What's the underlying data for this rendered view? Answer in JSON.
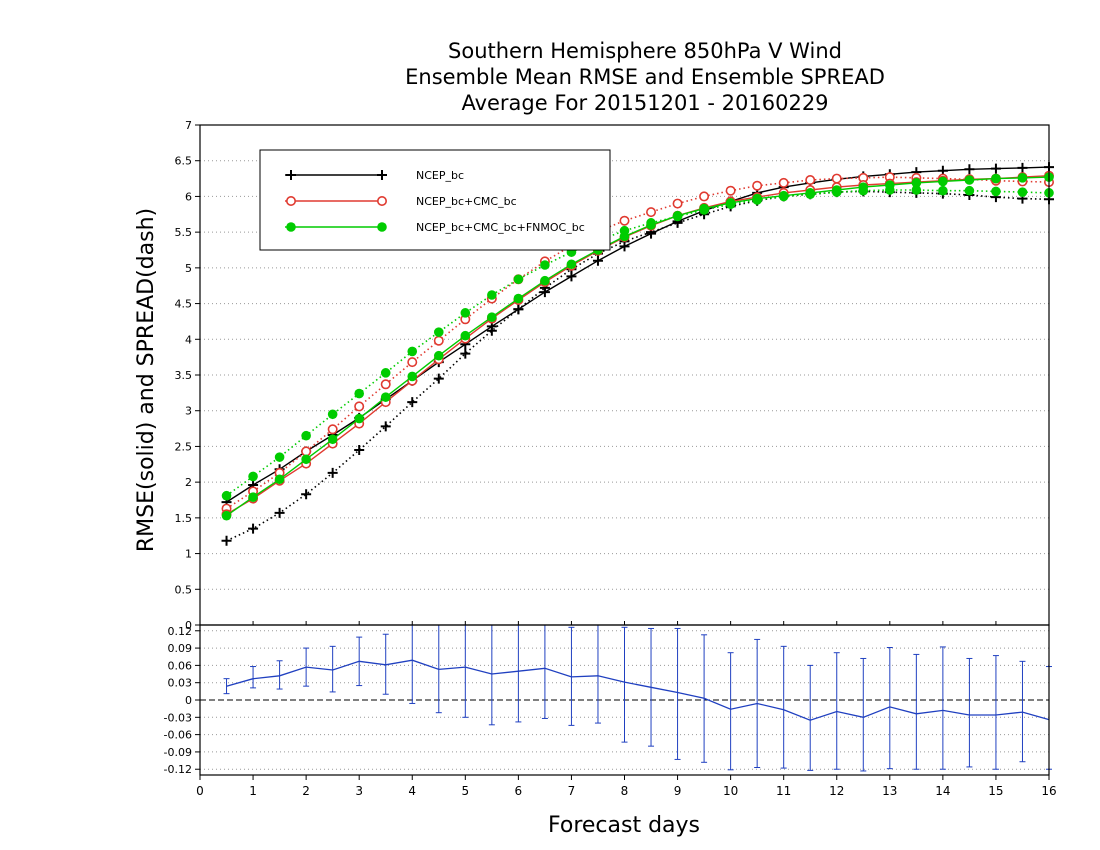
{
  "chart_data": [
    {
      "type": "line",
      "title": [
        "Southern Hemisphere 850hPa V Wind",
        "Ensemble Mean RMSE and Ensemble SPREAD",
        "Average For 20151201 - 20160229"
      ],
      "ylabel": "RMSE(solid)  and  SPREAD(dash)",
      "xlabel": "Forecast days",
      "xlim": [
        0,
        16
      ],
      "ylim": [
        0,
        7
      ],
      "yticks": [
        "0",
        "0.5",
        "1",
        "1.5",
        "2",
        "2.5",
        "3",
        "3.5",
        "4",
        "4.5",
        "5",
        "5.5",
        "6",
        "6.5",
        "7"
      ],
      "xticks": [
        "0",
        "1",
        "2",
        "3",
        "4",
        "5",
        "6",
        "7",
        "8",
        "9",
        "10",
        "11",
        "12",
        "13",
        "14",
        "15",
        "16"
      ],
      "grid": true,
      "legend_position": "top-left",
      "x": [
        0.5,
        1,
        1.5,
        2,
        2.5,
        3,
        3.5,
        4,
        4.5,
        5,
        5.5,
        6,
        6.5,
        7,
        7.5,
        8,
        8.5,
        9,
        9.5,
        10,
        10.5,
        11,
        11.5,
        12,
        12.5,
        13,
        13.5,
        14,
        14.5,
        15,
        15.5,
        16
      ],
      "series": [
        {
          "name": "NCEP_bc",
          "color": "#000000",
          "marker": "plus",
          "rmse": [
            1.72,
            1.96,
            2.18,
            2.43,
            2.66,
            2.9,
            3.16,
            3.42,
            3.68,
            3.93,
            4.18,
            4.42,
            4.66,
            4.88,
            5.1,
            5.3,
            5.48,
            5.65,
            5.8,
            5.93,
            6.05,
            6.13,
            6.19,
            6.24,
            6.28,
            6.31,
            6.34,
            6.36,
            6.38,
            6.39,
            6.4,
            6.41
          ],
          "spread": [
            1.18,
            1.35,
            1.57,
            1.83,
            2.13,
            2.45,
            2.78,
            3.12,
            3.45,
            3.8,
            4.12,
            4.42,
            4.72,
            4.98,
            5.2,
            5.37,
            5.5,
            5.63,
            5.75,
            5.86,
            5.94,
            6.0,
            6.03,
            6.06,
            6.07,
            6.06,
            6.05,
            6.04,
            6.02,
            5.99,
            5.97,
            5.96
          ]
        },
        {
          "name": "NCEP_bc+CMC_bc",
          "color": "#e03a30",
          "marker": "open-circle",
          "rmse": [
            1.55,
            1.77,
            2.02,
            2.26,
            2.54,
            2.82,
            3.12,
            3.42,
            3.72,
            4.01,
            4.29,
            4.55,
            4.8,
            5.03,
            5.24,
            5.43,
            5.59,
            5.73,
            5.84,
            5.93,
            5.99,
            6.05,
            6.09,
            6.13,
            6.16,
            6.18,
            6.2,
            6.22,
            6.24,
            6.25,
            6.27,
            6.29
          ],
          "spread": [
            1.63,
            1.87,
            2.13,
            2.43,
            2.74,
            3.06,
            3.37,
            3.68,
            3.98,
            4.28,
            4.57,
            4.84,
            5.09,
            5.31,
            5.51,
            5.66,
            5.78,
            5.9,
            6.0,
            6.08,
            6.15,
            6.19,
            6.23,
            6.25,
            6.26,
            6.27,
            6.26,
            6.25,
            6.24,
            6.22,
            6.21,
            6.2
          ]
        },
        {
          "name": "NCEP_bc+CMC_bc+FNMOC_bc",
          "color": "#00cc00",
          "marker": "filled-circle",
          "rmse": [
            1.53,
            1.79,
            2.04,
            2.32,
            2.6,
            2.89,
            3.19,
            3.48,
            3.77,
            4.05,
            4.31,
            4.57,
            4.82,
            5.05,
            5.25,
            5.44,
            5.6,
            5.73,
            5.83,
            5.91,
            5.97,
            6.01,
            6.05,
            6.09,
            6.13,
            6.16,
            6.19,
            6.21,
            6.23,
            6.25,
            6.26,
            6.27
          ],
          "spread": [
            1.81,
            2.08,
            2.35,
            2.65,
            2.95,
            3.24,
            3.53,
            3.83,
            4.1,
            4.37,
            4.62,
            4.84,
            5.04,
            5.22,
            5.38,
            5.52,
            5.63,
            5.72,
            5.81,
            5.89,
            5.95,
            6.0,
            6.03,
            6.06,
            6.08,
            6.09,
            6.09,
            6.08,
            6.08,
            6.07,
            6.06,
            6.05
          ]
        }
      ]
    },
    {
      "type": "line",
      "title": "",
      "xlabel": "Forecast days",
      "ylim": [
        -0.13,
        0.13
      ],
      "yticks": [
        "0.12",
        "0.09",
        "0.06",
        "0.03",
        "0",
        "-0.03",
        "-0.06",
        "-0.09",
        "-0.12"
      ],
      "grid": true,
      "series": [
        {
          "color": "#2040c0",
          "x": [
            0.5,
            1,
            1.5,
            2,
            2.5,
            3,
            3.5,
            4,
            4.5,
            5,
            5.5,
            6,
            6.5,
            7,
            7.5,
            8,
            8.5,
            9,
            9.5,
            10,
            10.5,
            11,
            11.5,
            12,
            12.5,
            13,
            13.5,
            14,
            14.5,
            15,
            15.5,
            16
          ],
          "values": [
            0.024,
            0.037,
            0.042,
            0.057,
            0.052,
            0.067,
            0.061,
            0.069,
            0.053,
            0.057,
            0.045,
            0.05,
            0.055,
            0.04,
            0.042,
            0.031,
            0.022,
            0.013,
            0.003,
            -0.016,
            -0.006,
            -0.017,
            -0.035,
            -0.02,
            -0.03,
            -0.012,
            -0.024,
            -0.018,
            -0.026,
            -0.026,
            -0.021,
            -0.034
          ],
          "err_low": [
            0.011,
            0.021,
            0.019,
            0.024,
            0.014,
            0.025,
            0.01,
            -0.006,
            -0.022,
            -0.03,
            -0.043,
            -0.038,
            -0.032,
            -0.044,
            -0.04,
            -0.073,
            -0.08,
            -0.103,
            -0.108,
            -0.121,
            -0.117,
            -0.118,
            -0.122,
            -0.12,
            -0.123,
            -0.119,
            -0.12,
            -0.12,
            -0.116,
            -0.12,
            -0.107,
            -0.12
          ],
          "err_high": [
            0.037,
            0.058,
            0.068,
            0.09,
            0.093,
            0.109,
            0.114,
            0.141,
            0.13,
            0.145,
            0.133,
            0.139,
            0.14,
            0.126,
            0.135,
            0.126,
            0.124,
            0.124,
            0.113,
            0.082,
            0.105,
            0.093,
            0.06,
            0.082,
            0.072,
            0.091,
            0.079,
            0.092,
            0.072,
            0.077,
            0.067,
            0.058
          ]
        }
      ]
    }
  ]
}
